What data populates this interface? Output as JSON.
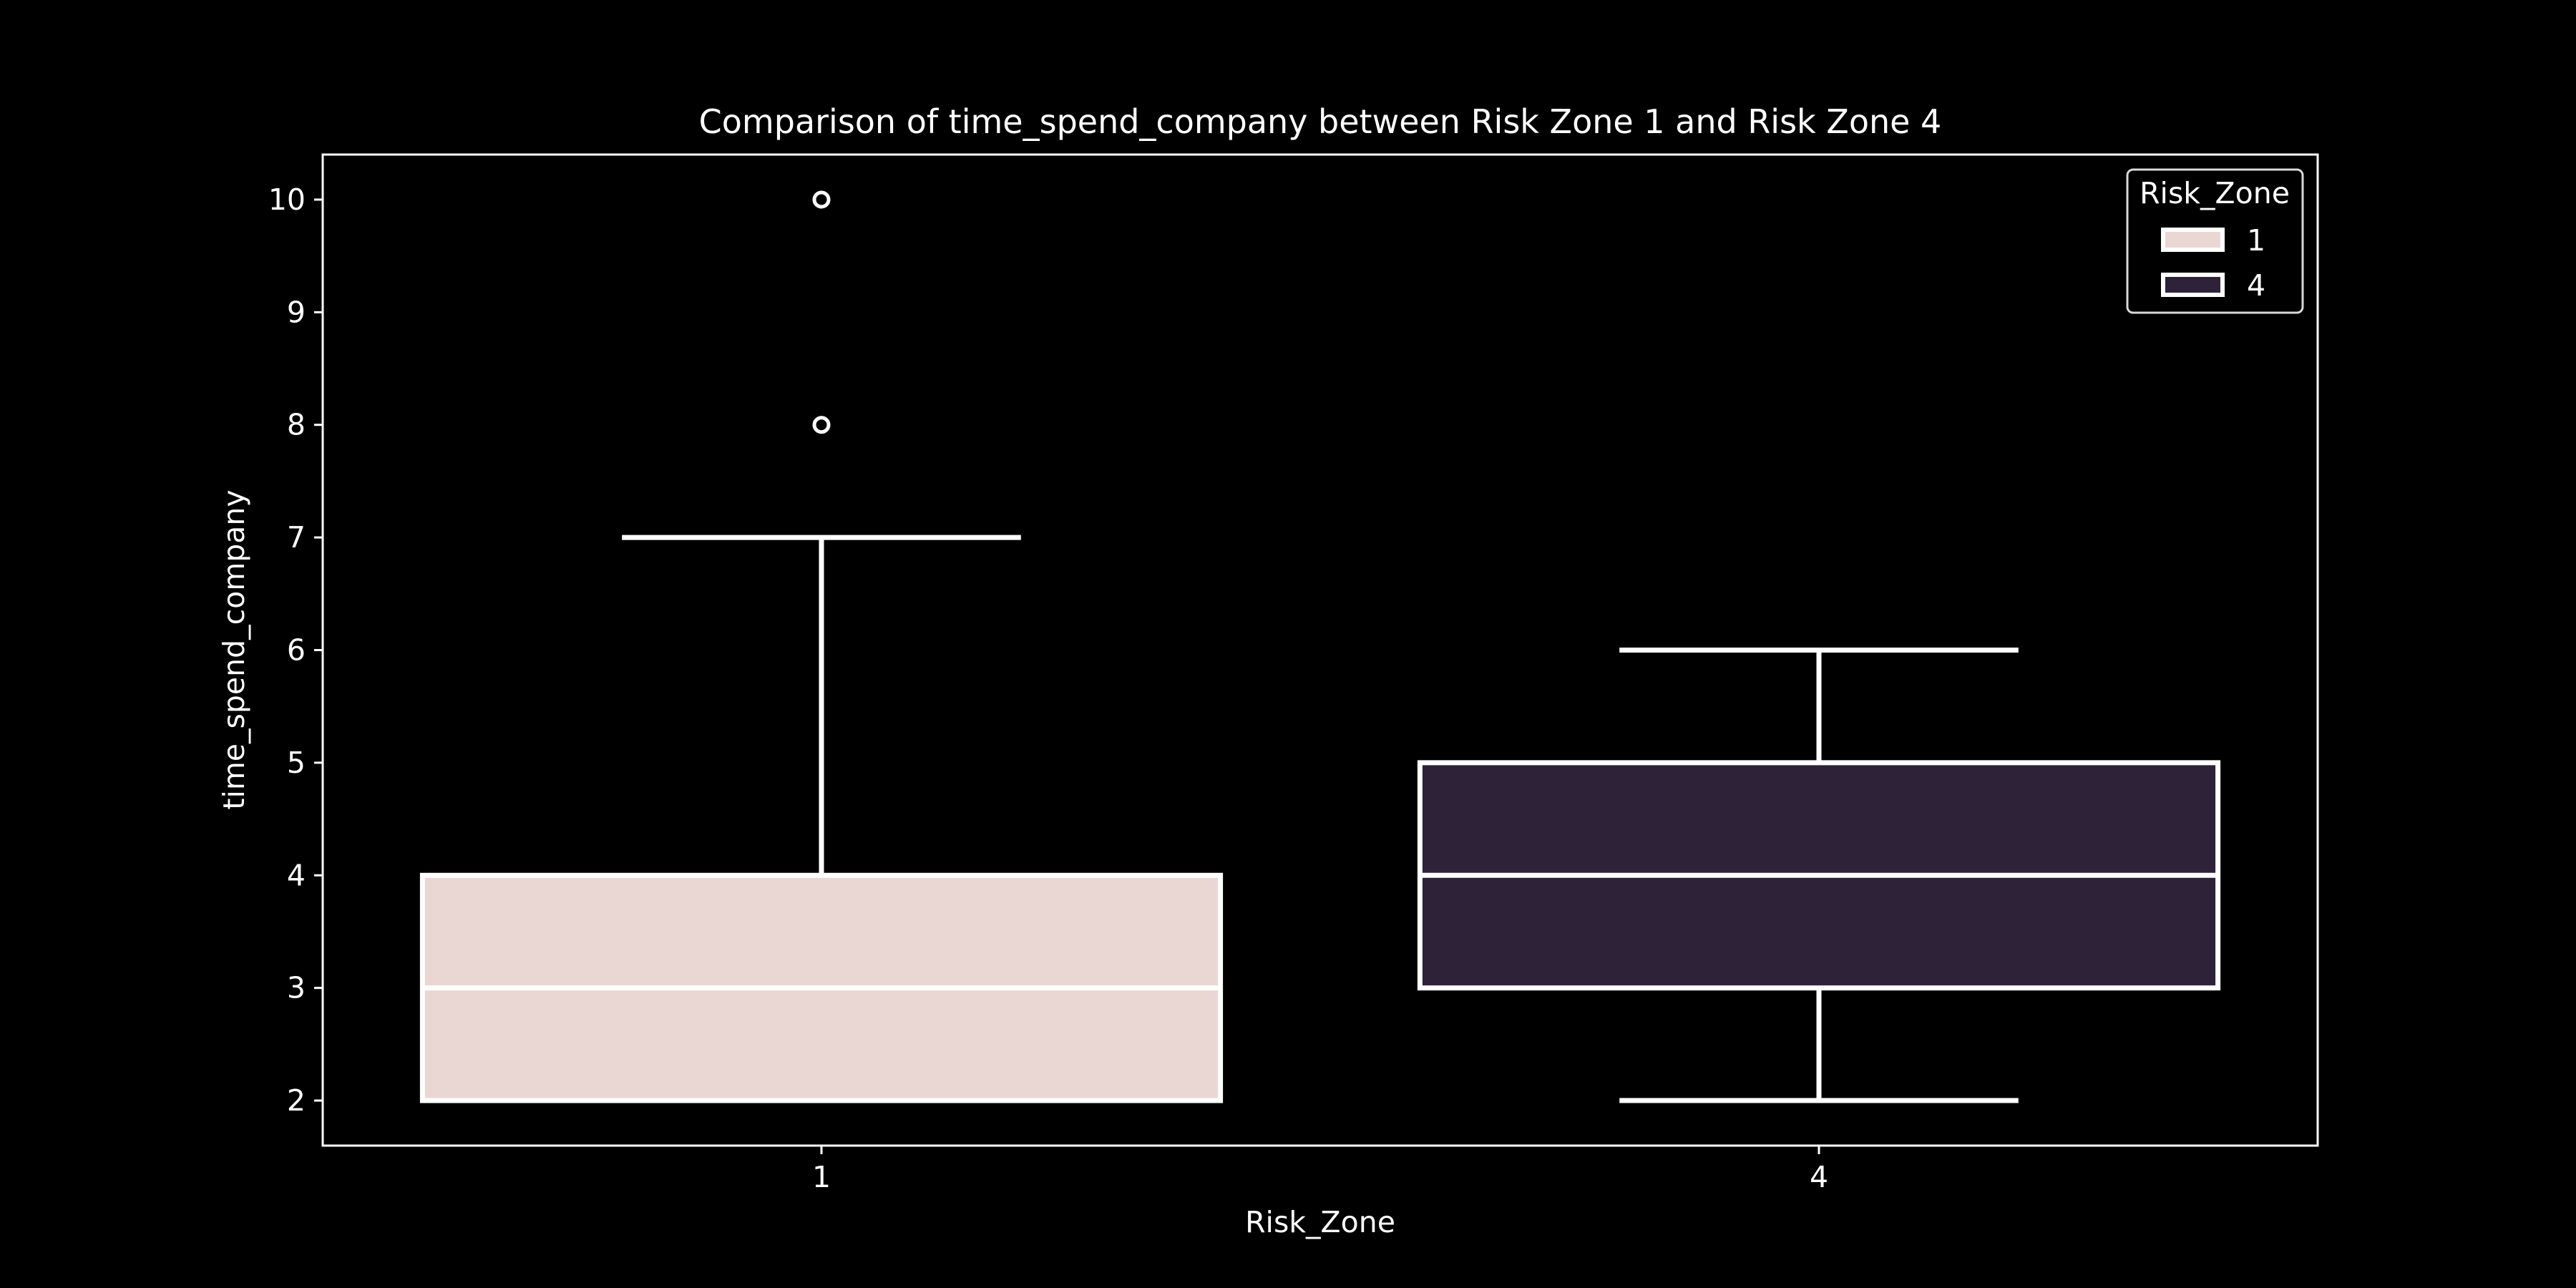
{
  "chart_data": {
    "type": "box",
    "title": "Comparison of time_spend_company between Risk Zone 1 and Risk Zone 4",
    "xlabel": "Risk_Zone",
    "ylabel": "time_spend_company",
    "categories": [
      "1",
      "4"
    ],
    "ylim": [
      1.6,
      10.4
    ],
    "yticks": [
      2,
      3,
      4,
      5,
      6,
      7,
      8,
      9,
      10
    ],
    "grid": false,
    "legend": {
      "title": "Risk_Zone",
      "placement": "top-right",
      "entries": [
        "1",
        "4"
      ]
    },
    "boxes": [
      {
        "category": "1",
        "whisker_low": 2,
        "q1": 2,
        "median": 3,
        "q3": 4,
        "whisker_high": 7,
        "outliers": [
          8,
          10
        ],
        "color": "#ead7d3"
      },
      {
        "category": "4",
        "whisker_low": 2,
        "q1": 3,
        "median": 4,
        "q3": 5,
        "whisker_high": 6,
        "outliers": [],
        "color": "#2e2239"
      }
    ]
  },
  "colors": {
    "background": "#000000",
    "foreground": "#ffffff"
  }
}
